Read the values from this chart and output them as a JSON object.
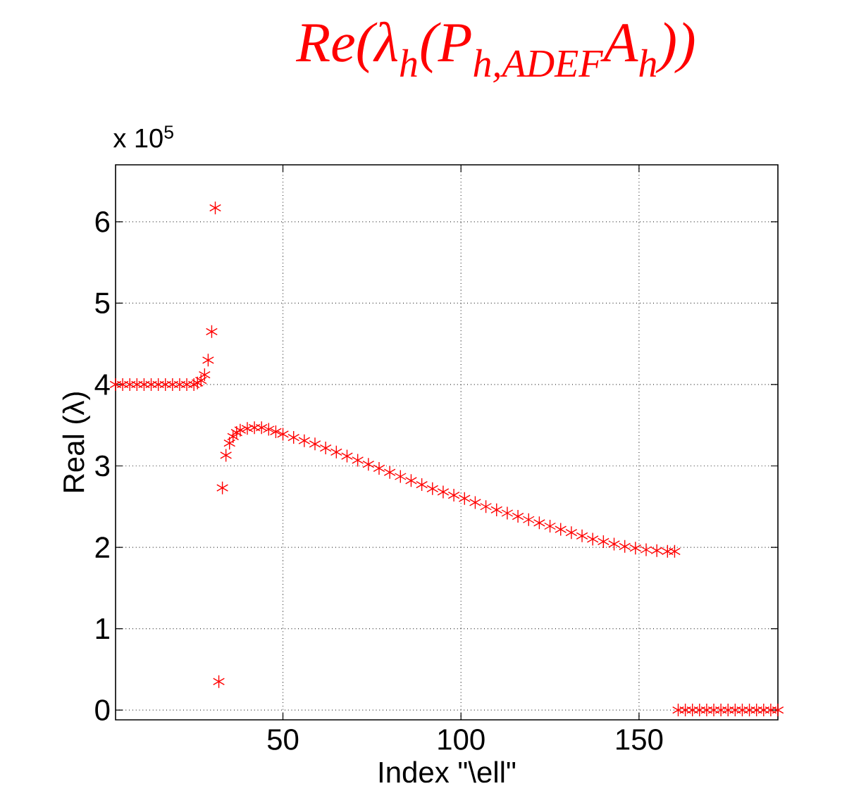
{
  "chart_data": {
    "type": "scatter",
    "title": "Re(λ$_{h}$(P$_{h,ADEF}$A$_{h}$))",
    "xlabel": "Index \"\\ell\"",
    "ylabel": "Real (λ)",
    "annotations": [
      "x 10$^{5}$"
    ],
    "xlim": [
      3,
      189
    ],
    "ylim": [
      -0.12,
      6.7
    ],
    "xticks": [
      50,
      100,
      150
    ],
    "yticks": [
      0,
      1,
      2,
      3,
      4,
      5,
      6
    ],
    "grid": true,
    "marker": "cross",
    "series": [
      {
        "color": "#ff0000",
        "x": [
          3,
          5,
          7,
          9,
          11,
          13,
          15,
          17,
          19,
          21,
          23,
          25,
          26,
          27,
          28,
          29,
          30,
          31,
          32,
          33,
          34,
          35,
          36,
          37,
          38,
          40,
          42,
          44,
          46,
          48,
          50,
          53,
          56,
          59,
          62,
          65,
          68,
          71,
          74,
          77,
          80,
          83,
          86,
          89,
          92,
          95,
          98,
          101,
          104,
          107,
          110,
          113,
          116,
          119,
          122,
          125,
          128,
          131,
          134,
          137,
          140,
          143,
          146,
          149,
          152,
          155,
          158,
          160,
          161,
          163,
          165,
          167,
          169,
          171,
          173,
          175,
          177,
          179,
          181,
          183,
          185,
          187,
          189
        ],
        "values": [
          4.0,
          4.0,
          4.0,
          4.0,
          4.0,
          4.0,
          4.0,
          4.0,
          4.0,
          4.0,
          4.0,
          4.0,
          4.02,
          4.05,
          4.12,
          4.3,
          4.65,
          6.17,
          0.35,
          2.73,
          3.13,
          3.28,
          3.36,
          3.41,
          3.44,
          3.46,
          3.47,
          3.47,
          3.45,
          3.42,
          3.39,
          3.35,
          3.31,
          3.27,
          3.22,
          3.17,
          3.12,
          3.07,
          3.02,
          2.97,
          2.92,
          2.87,
          2.82,
          2.77,
          2.72,
          2.68,
          2.64,
          2.6,
          2.55,
          2.5,
          2.46,
          2.42,
          2.38,
          2.34,
          2.3,
          2.26,
          2.22,
          2.18,
          2.14,
          2.1,
          2.07,
          2.04,
          2.01,
          1.99,
          1.97,
          1.96,
          1.95,
          1.95,
          0,
          0,
          0,
          0,
          0,
          0,
          0,
          0,
          0,
          0,
          0,
          0,
          0,
          0,
          0
        ]
      }
    ]
  }
}
